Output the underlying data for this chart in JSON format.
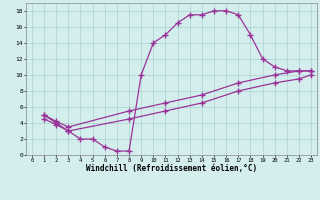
{
  "bg_color": "#d4eeed",
  "line_color": "#993399",
  "marker": "+",
  "markersize": 4,
  "markeredgewidth": 1.0,
  "linewidth": 0.9,
  "xlabel": "Windchill (Refroidissement éolien,°C)",
  "xlabel_fontsize": 5.5,
  "xlim": [
    -0.5,
    23.5
  ],
  "ylim": [
    0,
    19
  ],
  "xticks": [
    0,
    1,
    2,
    3,
    4,
    5,
    6,
    7,
    8,
    9,
    10,
    11,
    12,
    13,
    14,
    15,
    16,
    17,
    18,
    19,
    20,
    21,
    22,
    23
  ],
  "yticks": [
    0,
    2,
    4,
    6,
    8,
    10,
    12,
    14,
    16,
    18
  ],
  "grid_color": "#aad4d0",
  "curve1_x": [
    1,
    2,
    3,
    4,
    5,
    6,
    7,
    8,
    9,
    10,
    11,
    12,
    13,
    14,
    15,
    16,
    17,
    18,
    19,
    20,
    21,
    22,
    23
  ],
  "curve1_y": [
    5,
    4,
    3,
    2,
    2,
    1,
    0.5,
    0.5,
    10,
    14,
    15,
    16.5,
    17.5,
    17.5,
    18,
    18,
    17.5,
    15,
    12,
    11,
    10.5,
    10.5,
    10.5
  ],
  "curve2_x": [
    1,
    2,
    3,
    8,
    11,
    14,
    17,
    20,
    22,
    23
  ],
  "curve2_y": [
    5,
    4.2,
    3.5,
    5.5,
    6.5,
    7.5,
    9,
    10,
    10.5,
    10.5
  ],
  "curve3_x": [
    1,
    2,
    3,
    8,
    11,
    14,
    17,
    20,
    22,
    23
  ],
  "curve3_y": [
    4.5,
    3.8,
    3.0,
    4.5,
    5.5,
    6.5,
    8.0,
    9.0,
    9.5,
    10.0
  ]
}
